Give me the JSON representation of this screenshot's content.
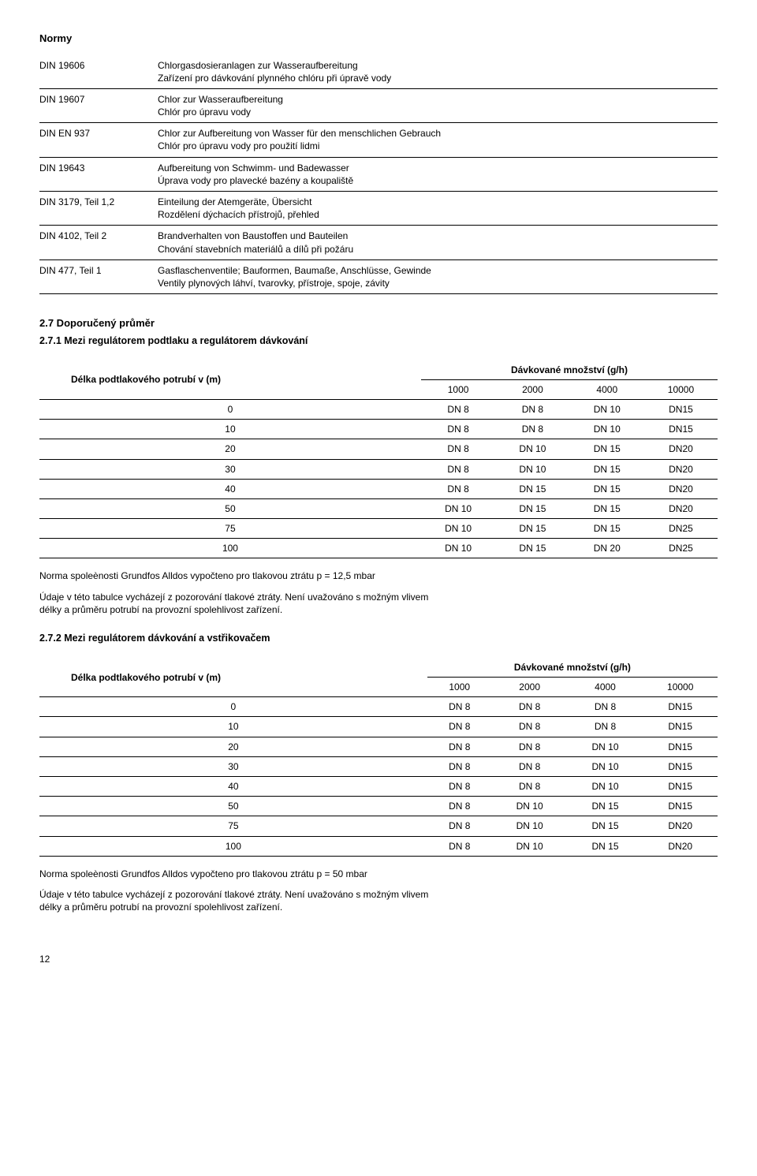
{
  "title": "Normy",
  "norms": [
    {
      "code": "DIN 19606",
      "de": "Chlorgasdosieranlagen zur Wasseraufbereitung",
      "cz": "Zařízení pro dávkování plynného chlóru při úpravě vody"
    },
    {
      "code": "DIN 19607",
      "de": "Chlor zur Wasseraufbereitung",
      "cz": "Chlór pro úpravu vody"
    },
    {
      "code": "DIN EN 937",
      "de": "Chlor zur Aufbereitung von Wasser für den menschlichen Gebrauch",
      "cz": "Chlór pro úpravu vody pro použití lidmi"
    },
    {
      "code": "DIN 19643",
      "de": "Aufbereitung von Schwimm- und Badewasser",
      "cz": "Úprava vody pro plavecké bazény a koupaliště"
    },
    {
      "code": "DIN 3179, Teil 1,2",
      "de": "Einteilung der Atemgeräte, Übersicht",
      "cz": "Rozdělení dýchacích přístrojů, přehled"
    },
    {
      "code": "DIN 4102, Teil 2",
      "de": "Brandverhalten von Baustoffen und Bauteilen",
      "cz": "Chování stavebních materiálů a dílů při požáru"
    },
    {
      "code": "DIN 477, Teil 1",
      "de": "Gasflaschenventile; Bauformen, Baumaße, Anschlüsse, Gewinde",
      "cz": "Ventily plynových láhví, tvarovky, přístroje, spoje, závity"
    }
  ],
  "section27": "2.7 Doporučený průměr",
  "section271": "2.7.1 Mezi regulátorem podtlaku a regulátorem dávkování",
  "t1": {
    "left_header": "Délka podtlakového potrubí v (m)",
    "right_header": "Dávkované množství (g/h)",
    "cols": [
      "1000",
      "2000",
      "4000",
      "10000"
    ],
    "rows": [
      [
        "0",
        "DN 8",
        "DN 8",
        "DN 10",
        "DN15"
      ],
      [
        "10",
        "DN 8",
        "DN 8",
        "DN 10",
        "DN15"
      ],
      [
        "20",
        "DN 8",
        "DN 10",
        "DN 15",
        "DN20"
      ],
      [
        "30",
        "DN 8",
        "DN 10",
        "DN 15",
        "DN20"
      ],
      [
        "40",
        "DN 8",
        "DN 15",
        "DN 15",
        "DN20"
      ],
      [
        "50",
        "DN 10",
        "DN 15",
        "DN 15",
        "DN20"
      ],
      [
        "75",
        "DN 10",
        "DN 15",
        "DN 15",
        "DN25"
      ],
      [
        "100",
        "DN 10",
        "DN 15",
        "DN 20",
        "DN25"
      ]
    ]
  },
  "note1a": "Norma spoleènosti Grundfos Alldos vypočteno pro tlakovou ztrátu p = 12,5 mbar",
  "note1b": "Údaje v této tabulce vycházejí z pozorování tlakové ztráty. Není uvažováno s možným vlivem délky a průměru potrubí na provozní spolehlivost zařízení.",
  "section272": "2.7.2 Mezi regulátorem dávkování a vstřikovačem",
  "t2": {
    "left_header": "Délka podtlakového potrubí v (m)",
    "right_header": "Dávkované množství (g/h)",
    "cols": [
      "1000",
      "2000",
      "4000",
      "10000"
    ],
    "rows": [
      [
        "0",
        "DN 8",
        "DN 8",
        "DN 8",
        "DN15"
      ],
      [
        "10",
        "DN 8",
        "DN 8",
        "DN 8",
        "DN15"
      ],
      [
        "20",
        "DN 8",
        "DN 8",
        "DN 10",
        "DN15"
      ],
      [
        "30",
        "DN 8",
        "DN 8",
        "DN 10",
        "DN15"
      ],
      [
        "40",
        "DN 8",
        "DN 8",
        "DN 10",
        "DN15"
      ],
      [
        "50",
        "DN 8",
        "DN 10",
        "DN 15",
        "DN15"
      ],
      [
        "75",
        "DN 8",
        "DN 10",
        "DN 15",
        "DN20"
      ],
      [
        "100",
        "DN 8",
        "DN 10",
        "DN 15",
        "DN20"
      ]
    ]
  },
  "note2a": "Norma spoleènosti Grundfos Alldos vypočteno pro tlakovou ztrátu p = 50 mbar",
  "note2b": "Údaje v této tabulce vycházejí z pozorování tlakové ztráty. Není uvažováno s možným vlivem délky a průměru potrubí na provozní spolehlivost zařízení.",
  "page_number": "12"
}
